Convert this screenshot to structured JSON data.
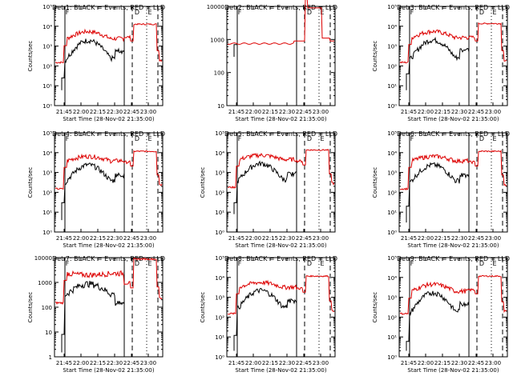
{
  "colors": {
    "events": "#000000",
    "lld": "#dd0000",
    "background": "#ffffff",
    "axis": "#000000"
  },
  "chart_data": [
    {
      "type": "line",
      "title": "Det 1: BLACK = Events, RED = LLD",
      "xlabel": "Start Time (28-Nov-02 21:35:00)",
      "ylabel": "Counts/sec",
      "y_scale": "log",
      "ylim": [
        1,
        100000
      ],
      "y_ticks": [
        "10⁰",
        "10¹",
        "10²",
        "10³",
        "10⁴",
        "10⁵"
      ],
      "x_ticks": [
        "21:45",
        "22:00",
        "22:15",
        "22:30",
        "22:45",
        "23:00"
      ],
      "markers": [
        "F",
        "D",
        "E"
      ],
      "shape": {
        "lld_base": 150,
        "lld_low": 350,
        "lld_high": 6000,
        "lld_peak": 13000,
        "lld_end": 200,
        "ev_low": 180,
        "ev_high": 2500,
        "ev_end": 600,
        "ev_pre": 25,
        "ev_pre_low": 6,
        "jump": false
      }
    },
    {
      "type": "line",
      "title": "Det 2: BLACK = Events, RED = LLD",
      "xlabel": "Start Time (28-Nov-02 21:35:00)",
      "ylabel": "",
      "y_scale": "log",
      "ylim": [
        10,
        10000
      ],
      "y_ticks": [
        "10",
        "100",
        "1000",
        "10000"
      ],
      "x_ticks": [
        "21:45",
        "22:00",
        "22:15",
        "22:30",
        "22:45",
        "23:00"
      ],
      "markers": [
        "F",
        "D",
        "E"
      ],
      "shape": {
        "lld_base": 750,
        "jump": true
      }
    },
    {
      "type": "line",
      "title": "Det 3: BLACK = Events, RED = LLD",
      "xlabel": "Start Time (28-Nov-02 21:35:00)",
      "ylabel": "Counts/sec",
      "y_scale": "log",
      "ylim": [
        1,
        100000
      ],
      "y_ticks": [
        "10⁰",
        "10¹",
        "10²",
        "10³",
        "10⁴",
        "10⁵"
      ],
      "x_ticks": [
        "21:45",
        "22:00",
        "22:15",
        "22:30",
        "22:45",
        "23:00"
      ],
      "markers": [
        "F",
        "D",
        "E"
      ],
      "shape": {
        "lld_base": 150,
        "lld_low": 400,
        "lld_high": 6000,
        "lld_peak": 14000,
        "lld_end": 200,
        "ev_low": 200,
        "ev_high": 2600,
        "ev_end": 700,
        "ev_pre": 40,
        "ev_pre_low": 6,
        "jump": false
      }
    },
    {
      "type": "line",
      "title": "Det 4: BLACK = Events, RED = LLD",
      "xlabel": "Start Time (28-Nov-02 21:35:00)",
      "ylabel": "Counts/sec",
      "y_scale": "log",
      "ylim": [
        1,
        100000
      ],
      "y_ticks": [
        "10⁰",
        "10¹",
        "10²",
        "10³",
        "10⁴",
        "10⁵"
      ],
      "x_ticks": [
        "21:45",
        "22:00",
        "22:15",
        "22:30",
        "22:45",
        "23:00"
      ],
      "markers": [
        "F",
        "D",
        "E"
      ],
      "shape": {
        "lld_base": 150,
        "lld_low": 600,
        "lld_high": 7000,
        "lld_peak": 12000,
        "lld_end": 250,
        "ev_low": 300,
        "ev_high": 3000,
        "ev_end": 800,
        "ev_pre": 30,
        "ev_pre_low": 4,
        "jump": false
      }
    },
    {
      "type": "line",
      "title": "Det 5: BLACK = Events, RED = LLD",
      "xlabel": "Start Time (28-Nov-02 21:35:00)",
      "ylabel": "Counts/sec",
      "y_scale": "log",
      "ylim": [
        1,
        100000
      ],
      "y_ticks": [
        "10⁰",
        "10¹",
        "10²",
        "10³",
        "10⁴",
        "10⁵"
      ],
      "x_ticks": [
        "21:45",
        "22:00",
        "22:15",
        "22:30",
        "22:45",
        "23:00"
      ],
      "markers": [
        "F",
        "D",
        "E"
      ],
      "shape": {
        "lld_base": 180,
        "lld_low": 700,
        "lld_high": 8000,
        "lld_peak": 14000,
        "lld_end": 280,
        "ev_low": 350,
        "ev_high": 3500,
        "ev_end": 900,
        "ev_pre": 30,
        "ev_pre_low": 8,
        "jump": false
      }
    },
    {
      "type": "line",
      "title": "Det 6: BLACK = Events, RED = LLD",
      "xlabel": "Start Time (28-Nov-02 21:35:00)",
      "ylabel": "Counts/sec",
      "y_scale": "log",
      "ylim": [
        1,
        100000
      ],
      "y_ticks": [
        "10⁰",
        "10¹",
        "10²",
        "10³",
        "10⁴",
        "10⁵"
      ],
      "x_ticks": [
        "21:45",
        "22:00",
        "22:15",
        "22:30",
        "22:45",
        "23:00"
      ],
      "markers": [
        "F",
        "D",
        "E"
      ],
      "shape": {
        "lld_base": 150,
        "lld_low": 600,
        "lld_high": 7000,
        "lld_peak": 12000,
        "lld_end": 250,
        "ev_low": 300,
        "ev_high": 3000,
        "ev_end": 800,
        "ev_pre": 20,
        "ev_pre_low": 3,
        "jump": false
      }
    },
    {
      "type": "line",
      "title": "Det 7: BLACK = Events, RED = LLD",
      "xlabel": "Start Time (28-Nov-02 21:35:00)",
      "ylabel": "Counts/sec",
      "y_scale": "log",
      "ylim": [
        1,
        10000
      ],
      "y_ticks": [
        "1",
        "10",
        "100",
        "1000",
        "10000"
      ],
      "x_ticks": [
        "21:45",
        "22:00",
        "22:15",
        "22:30",
        "22:45",
        "23:00"
      ],
      "markers": [
        "F",
        "D",
        "E"
      ],
      "shape": {
        "lld_base": 150,
        "lld_low": 400,
        "lld_high": 2000,
        "lld_peak": 9000,
        "lld_end": 220,
        "ev_low": 300,
        "ev_high": 1000,
        "ev_end": 150,
        "ev_pre": 8,
        "ev_pre_low": 1.5,
        "jump": false
      }
    },
    {
      "type": "line",
      "title": "Det 8: BLACK = Events, RED = LLD",
      "xlabel": "Start Time (28-Nov-02 21:35:00)",
      "ylabel": "Counts/sec",
      "y_scale": "log",
      "ylim": [
        1,
        100000
      ],
      "y_ticks": [
        "10⁰",
        "10¹",
        "10²",
        "10³",
        "10⁴",
        "10⁵"
      ],
      "x_ticks": [
        "21:45",
        "22:00",
        "22:15",
        "22:30",
        "22:45",
        "23:00"
      ],
      "markers": [
        "F",
        "D",
        "E"
      ],
      "shape": {
        "lld_base": 150,
        "lld_low": 500,
        "lld_high": 6000,
        "lld_peak": 12000,
        "lld_end": 220,
        "ev_low": 250,
        "ev_high": 2800,
        "ev_end": 700,
        "ev_pre": 12,
        "ev_pre_low": 2,
        "jump": false
      }
    },
    {
      "type": "line",
      "title": "Det 9: BLACK = Events, RED = LLD",
      "xlabel": "Start Time (28-Nov-02 21:35:00)",
      "ylabel": "Counts/sec",
      "y_scale": "log",
      "ylim": [
        1,
        100000
      ],
      "y_ticks": [
        "10⁰",
        "10¹",
        "10²",
        "10³",
        "10⁴",
        "10⁵"
      ],
      "x_ticks": [
        "21:45",
        "22:00",
        "22:15",
        "22:30",
        "22:45",
        "23:00"
      ],
      "markers": [
        "F",
        "D",
        "E"
      ],
      "shape": {
        "lld_base": 150,
        "lld_low": 300,
        "lld_high": 5000,
        "lld_peak": 12000,
        "lld_end": 200,
        "ev_low": 150,
        "ev_high": 2200,
        "ev_end": 500,
        "ev_pre": 6,
        "ev_pre_low": 2,
        "jump": false
      }
    }
  ]
}
